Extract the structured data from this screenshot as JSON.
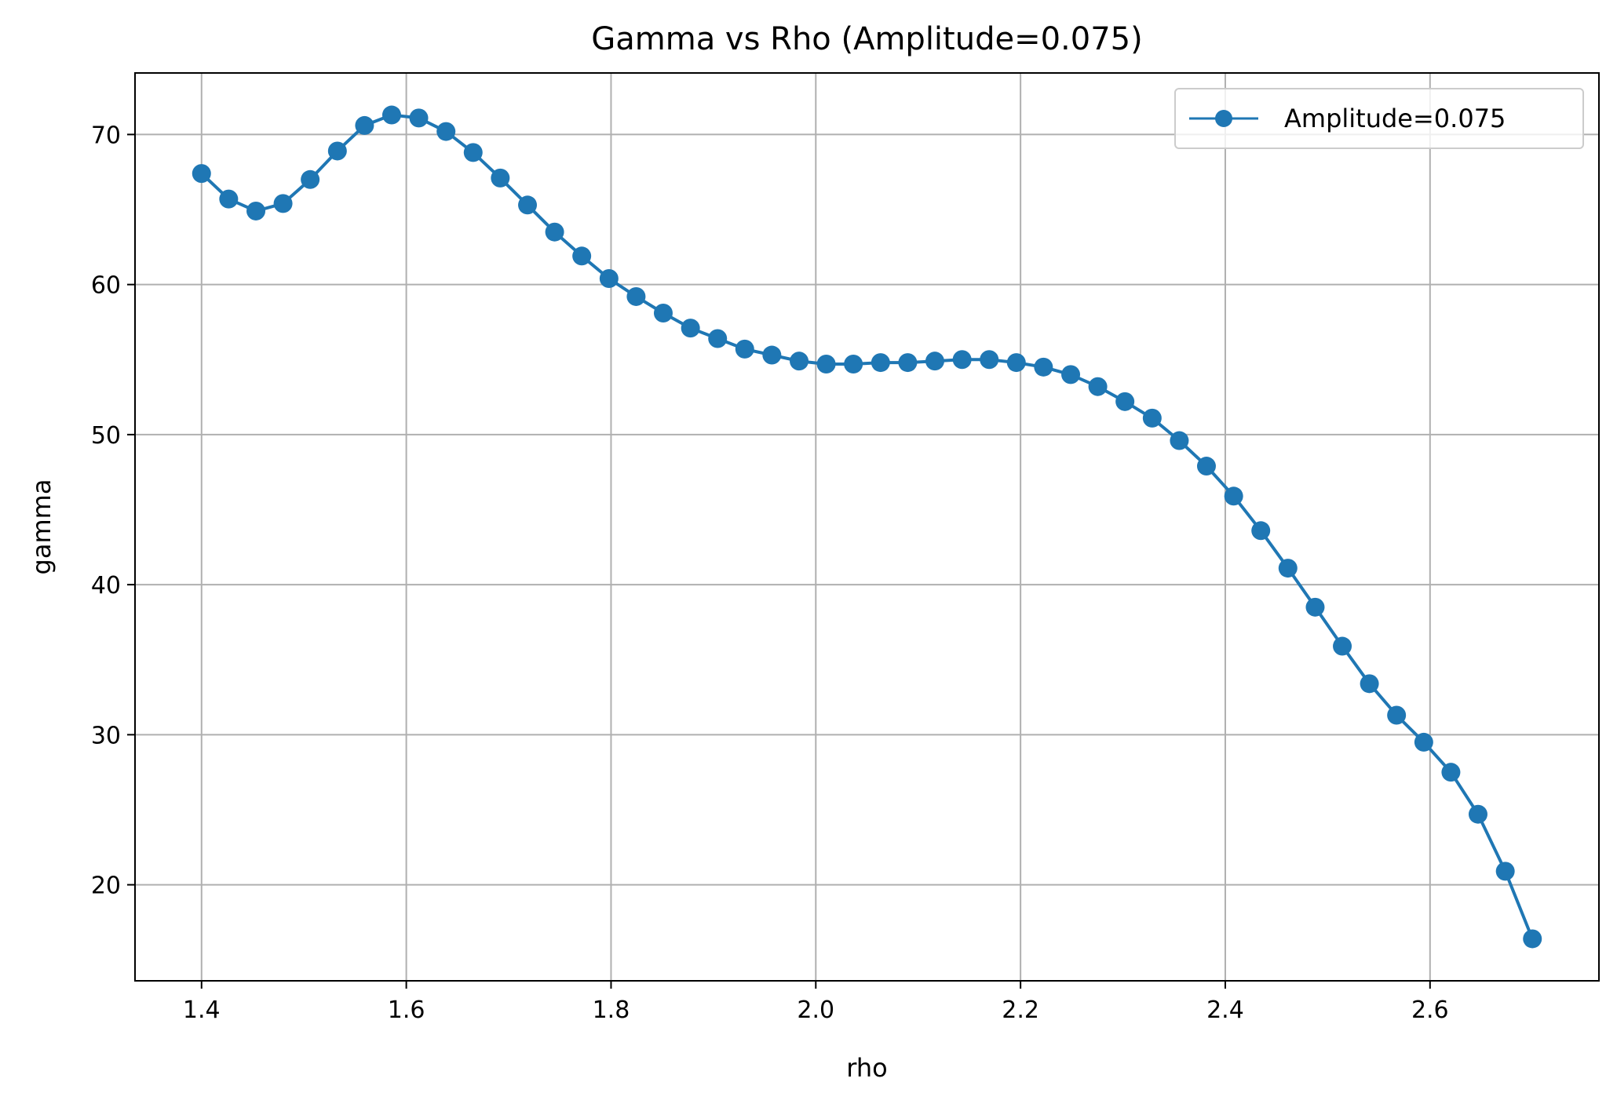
{
  "chart_data": {
    "type": "line",
    "title": "Gamma vs Rho (Amplitude=0.075)",
    "xlabel": "rho",
    "ylabel": "gamma",
    "xlim": [
      1.335,
      2.765
    ],
    "ylim": [
      13.6,
      74.1
    ],
    "xticks": [
      1.4,
      1.6,
      1.8,
      2.0,
      2.2,
      2.4,
      2.6
    ],
    "xtick_labels": [
      "1.4",
      "1.6",
      "1.8",
      "2.0",
      "2.2",
      "2.4",
      "2.6"
    ],
    "yticks": [
      20,
      30,
      40,
      50,
      60,
      70
    ],
    "ytick_labels": [
      "20",
      "30",
      "40",
      "50",
      "60",
      "70"
    ],
    "grid": true,
    "legend_position": "top-right",
    "colors": {
      "series": "#1f77b4",
      "grid": "#b0b0b0",
      "axes": "#000000"
    },
    "series": [
      {
        "name": "Amplitude=0.075",
        "marker": "circle",
        "x": [
          1.4,
          1.4265,
          1.4531,
          1.4796,
          1.5061,
          1.5327,
          1.5592,
          1.5857,
          1.6122,
          1.6388,
          1.6653,
          1.6918,
          1.7184,
          1.7449,
          1.7714,
          1.798,
          1.8245,
          1.851,
          1.8776,
          1.9041,
          1.9306,
          1.9571,
          1.9837,
          2.0102,
          2.0367,
          2.0633,
          2.0898,
          2.1163,
          2.1429,
          2.1694,
          2.1959,
          2.2224,
          2.249,
          2.2755,
          2.302,
          2.3286,
          2.3551,
          2.3816,
          2.4082,
          2.4347,
          2.4612,
          2.4878,
          2.5143,
          2.5408,
          2.5673,
          2.5939,
          2.6204,
          2.6469,
          2.6735,
          2.7
        ],
        "y": [
          67.4,
          65.7,
          64.9,
          65.4,
          67.0,
          68.9,
          70.6,
          71.3,
          71.1,
          70.2,
          68.8,
          67.1,
          65.3,
          63.5,
          61.9,
          60.4,
          59.2,
          58.1,
          57.1,
          56.4,
          55.7,
          55.3,
          54.9,
          54.7,
          54.7,
          54.8,
          54.8,
          54.9,
          55.0,
          55.0,
          54.8,
          54.5,
          54.0,
          53.2,
          52.2,
          51.1,
          49.6,
          47.9,
          45.9,
          43.6,
          41.1,
          38.5,
          35.9,
          33.4,
          31.3,
          29.5,
          27.5,
          24.7,
          20.9,
          16.4
        ]
      }
    ]
  }
}
